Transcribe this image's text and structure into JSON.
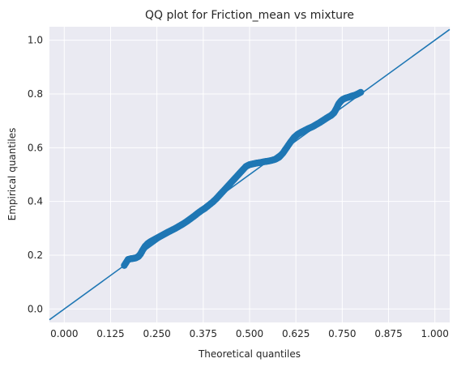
{
  "chart_data": {
    "type": "scatter",
    "title": "QQ plot for Friction_mean vs mixture",
    "xlabel": "Theoretical quantiles",
    "ylabel": "Empirical quantiles",
    "xlim": [
      -0.04,
      1.04
    ],
    "ylim": [
      -0.05,
      1.05
    ],
    "xticks": [
      "0.000",
      "0.125",
      "0.250",
      "0.375",
      "0.500",
      "0.625",
      "0.750",
      "0.875",
      "1.000"
    ],
    "yticks": [
      "0.0",
      "0.2",
      "0.4",
      "0.6",
      "0.8",
      "1.0"
    ],
    "grid": true,
    "reference_line": {
      "slope": 1,
      "intercept": 0
    },
    "colors": {
      "points": "#1f77b4",
      "line": "#1f77b4",
      "background": "#eaeaf2",
      "grid": "#ffffff"
    },
    "series": [
      {
        "values": [
          [
            0.162,
            0.162
          ],
          [
            0.172,
            0.184
          ],
          [
            0.18,
            0.187
          ],
          [
            0.186,
            0.188
          ],
          [
            0.193,
            0.19
          ],
          [
            0.2,
            0.195
          ],
          [
            0.206,
            0.205
          ],
          [
            0.212,
            0.22
          ],
          [
            0.218,
            0.233
          ],
          [
            0.225,
            0.243
          ],
          [
            0.232,
            0.25
          ],
          [
            0.24,
            0.256
          ],
          [
            0.248,
            0.262
          ],
          [
            0.256,
            0.268
          ],
          [
            0.264,
            0.274
          ],
          [
            0.272,
            0.28
          ],
          [
            0.28,
            0.286
          ],
          [
            0.29,
            0.293
          ],
          [
            0.3,
            0.3
          ],
          [
            0.31,
            0.308
          ],
          [
            0.32,
            0.316
          ],
          [
            0.33,
            0.325
          ],
          [
            0.34,
            0.335
          ],
          [
            0.35,
            0.345
          ],
          [
            0.36,
            0.356
          ],
          [
            0.37,
            0.366
          ],
          [
            0.38,
            0.375
          ],
          [
            0.39,
            0.386
          ],
          [
            0.4,
            0.397
          ],
          [
            0.41,
            0.41
          ],
          [
            0.42,
            0.425
          ],
          [
            0.43,
            0.44
          ],
          [
            0.44,
            0.455
          ],
          [
            0.45,
            0.47
          ],
          [
            0.46,
            0.485
          ],
          [
            0.47,
            0.5
          ],
          [
            0.48,
            0.515
          ],
          [
            0.49,
            0.53
          ],
          [
            0.5,
            0.537
          ],
          [
            0.51,
            0.54
          ],
          [
            0.52,
            0.543
          ],
          [
            0.53,
            0.545
          ],
          [
            0.54,
            0.548
          ],
          [
            0.55,
            0.55
          ],
          [
            0.56,
            0.553
          ],
          [
            0.57,
            0.557
          ],
          [
            0.58,
            0.565
          ],
          [
            0.59,
            0.58
          ],
          [
            0.6,
            0.6
          ],
          [
            0.61,
            0.62
          ],
          [
            0.62,
            0.638
          ],
          [
            0.63,
            0.65
          ],
          [
            0.64,
            0.658
          ],
          [
            0.65,
            0.665
          ],
          [
            0.66,
            0.672
          ],
          [
            0.67,
            0.678
          ],
          [
            0.68,
            0.686
          ],
          [
            0.69,
            0.694
          ],
          [
            0.7,
            0.703
          ],
          [
            0.71,
            0.712
          ],
          [
            0.72,
            0.72
          ],
          [
            0.728,
            0.73
          ],
          [
            0.734,
            0.745
          ],
          [
            0.74,
            0.762
          ],
          [
            0.746,
            0.773
          ],
          [
            0.752,
            0.78
          ],
          [
            0.76,
            0.785
          ],
          [
            0.768,
            0.788
          ],
          [
            0.776,
            0.792
          ],
          [
            0.784,
            0.795
          ],
          [
            0.792,
            0.8
          ],
          [
            0.8,
            0.806
          ]
        ]
      }
    ]
  }
}
